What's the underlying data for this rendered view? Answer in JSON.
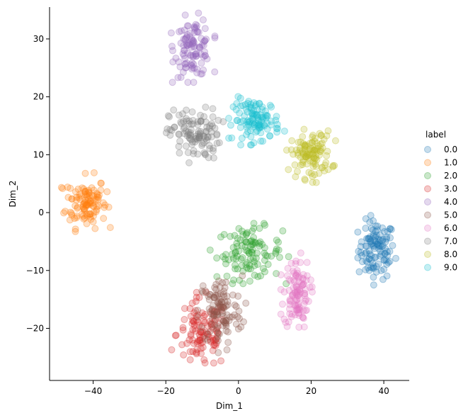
{
  "chart_data": {
    "type": "scatter",
    "xlabel": "Dim_1",
    "ylabel": "Dim_2",
    "xlim": [
      -52,
      47
    ],
    "ylim": [
      -29,
      35.5
    ],
    "xticks": [
      -40,
      -20,
      0,
      20,
      40
    ],
    "yticks": [
      -20,
      -10,
      0,
      10,
      20,
      30
    ],
    "legend_title": "label",
    "legend_position": "right",
    "marker_alpha": 0.25,
    "series": [
      {
        "name": "0.0",
        "color": "#1f77b4",
        "center": [
          38,
          -6.5
        ],
        "spread": [
          2.5,
          2.5
        ]
      },
      {
        "name": "1.0",
        "color": "#ff7f0e",
        "center": [
          -42,
          1.8
        ],
        "spread": [
          2.8,
          2.2
        ]
      },
      {
        "name": "2.0",
        "color": "#2ca02c",
        "center": [
          3,
          -7
        ],
        "spread": [
          4.5,
          2.2
        ]
      },
      {
        "name": "3.0",
        "color": "#d62728",
        "center": [
          -10,
          -21
        ],
        "spread": [
          3.5,
          3
        ]
      },
      {
        "name": "4.0",
        "color": "#9467bd",
        "center": [
          -12.5,
          28.5
        ],
        "spread": [
          2.5,
          2.5
        ]
      },
      {
        "name": "5.0",
        "color": "#8c564b",
        "center": [
          -5,
          -17
        ],
        "spread": [
          3,
          3
        ]
      },
      {
        "name": "6.0",
        "color": "#e377c2",
        "center": [
          16,
          -14
        ],
        "spread": [
          1.8,
          3
        ]
      },
      {
        "name": "7.0",
        "color": "#7f7f7f",
        "center": [
          -12,
          13.5
        ],
        "spread": [
          3.5,
          2.2
        ]
      },
      {
        "name": "8.0",
        "color": "#bcbd22",
        "center": [
          20,
          10
        ],
        "spread": [
          2.8,
          2
        ]
      },
      {
        "name": "9.0",
        "color": "#17becf",
        "center": [
          5,
          16
        ],
        "spread": [
          3.2,
          1.8
        ]
      }
    ]
  }
}
